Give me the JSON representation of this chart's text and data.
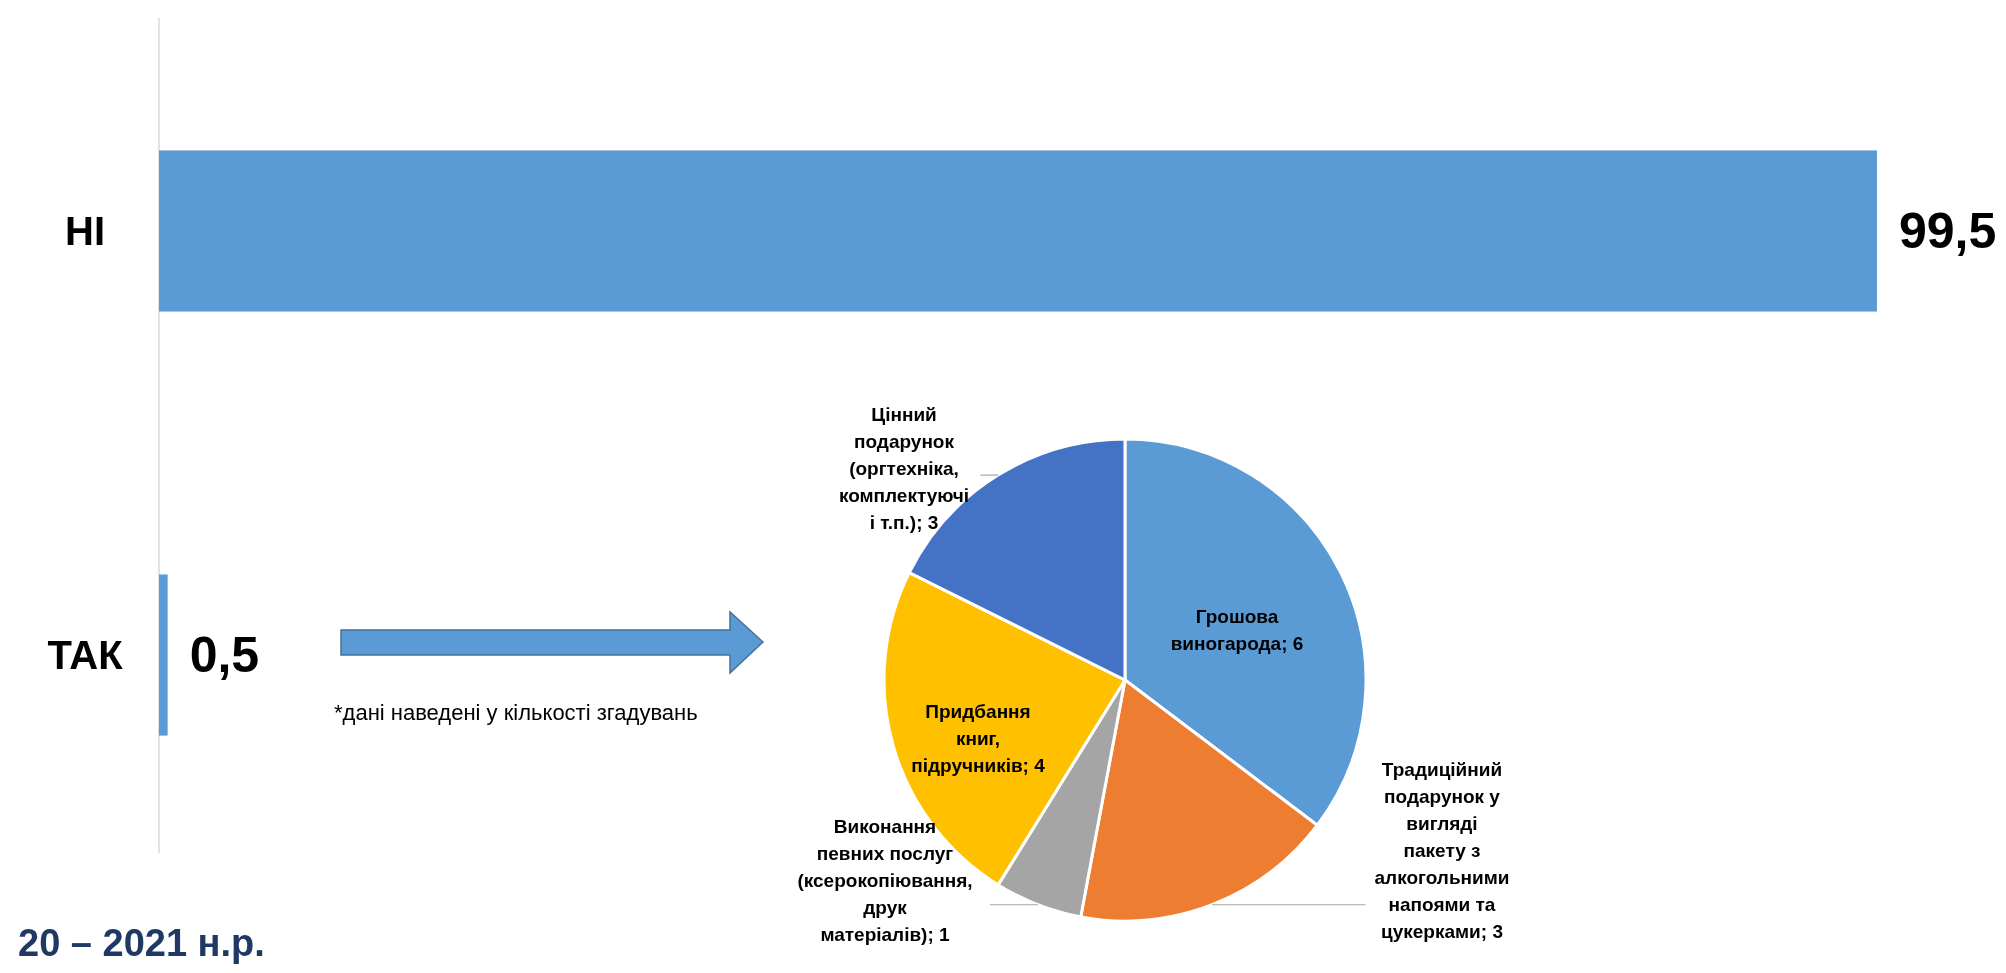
{
  "chart_data": [
    {
      "type": "bar",
      "orientation": "horizontal",
      "categories": [
        "НІ",
        "ТАК"
      ],
      "values": [
        99.5,
        0.5
      ],
      "value_labels": [
        "99,5",
        "0,5"
      ],
      "color": "#5b9bd5",
      "annotations": [
        "20 – 2021 н.р."
      ]
    },
    {
      "type": "pie",
      "categories": [
        "Грошова виногарода",
        "Традиційний подарунок у вигляді пакету з алкогольними напоями та цукерками",
        "Виконання певних послуг (ксерокопіювання, друк матеріалів)",
        "Придбання книг, підручників",
        "Цінний подарунок (оргтехніка, комплектуючі і т.п.)"
      ],
      "values": [
        6,
        3,
        1,
        4,
        3
      ],
      "value_labels": [
        "6",
        "3",
        "1",
        "4",
        "3"
      ],
      "colors": [
        "#5b9bd5",
        "#ed7d31",
        "#a5a5a5",
        "#ffc000",
        "#4472c4"
      ],
      "annotations": [
        "*дані наведені у кількості згадувань"
      ]
    }
  ]
}
